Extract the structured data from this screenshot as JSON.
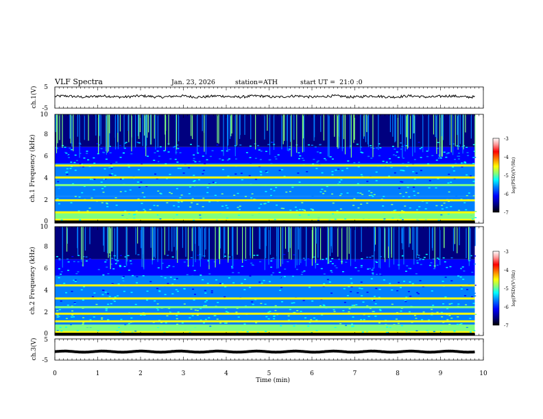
{
  "header": {
    "title": "VLF Spectra",
    "date": "Jan. 23, 2026",
    "station": "station=ATH",
    "start": "start UT =  21:0 :0"
  },
  "colors": {
    "jet": [
      "#000000",
      "#00007f",
      "#0000ff",
      "#007fff",
      "#00ffff",
      "#7fff7f",
      "#ffff00",
      "#ff7f00",
      "#ff0000",
      "#ff9f9f",
      "#ffffff"
    ],
    "trace": "#000000",
    "axis": "#000000"
  },
  "chart_data": [
    {
      "id": "ch1-waveform",
      "type": "line",
      "ylabel": "ch.1(V)",
      "ylim": [
        -5,
        5
      ],
      "yticks": [
        "5",
        "-5"
      ],
      "series": [
        {
          "name": "ch.1",
          "mean": 0.5,
          "amplitude": 0.6
        }
      ]
    },
    {
      "id": "ch1-spectrogram",
      "type": "heatmap",
      "ylabel": "ch.1 Frequency (kHz)",
      "ylim": [
        0,
        10
      ],
      "yticks": [
        "0",
        "2",
        "4",
        "6",
        "8",
        "10"
      ],
      "bands_khz": [
        0.6,
        1.0,
        2.1,
        3.5,
        4.2,
        5.3
      ],
      "colorbar": {
        "label": "log(PSD)(V²/Hz)",
        "range": [
          -7,
          -3
        ],
        "ticks": [
          "-3",
          "-4",
          "-5",
          "-6",
          "-7"
        ]
      }
    },
    {
      "id": "ch2-spectrogram",
      "type": "heatmap",
      "ylabel": "ch.2 Frequency (kHz)",
      "ylim": [
        0,
        10
      ],
      "yticks": [
        "0",
        "2",
        "4",
        "6",
        "8",
        "10"
      ],
      "bands_khz": [
        0.6,
        1.3,
        2.0,
        2.6,
        3.4,
        4.6
      ],
      "colorbar": {
        "label": "log(PSD)(V²/Hz)",
        "range": [
          -7,
          -3
        ],
        "ticks": [
          "-3",
          "-4",
          "-5",
          "-6",
          "-7"
        ]
      }
    },
    {
      "id": "ch3-waveform",
      "type": "line",
      "ylabel": "ch.3(V)",
      "ylim": [
        -5,
        5
      ],
      "yticks": [
        "5",
        "-5"
      ],
      "series": [
        {
          "name": "ch.3",
          "mean": -1.0,
          "amplitude": 0.15
        }
      ]
    }
  ],
  "x_axis": {
    "label": "Time (min)",
    "xlim": [
      0,
      10
    ],
    "data_end_min": 9.8,
    "ticks": [
      "0",
      "1",
      "2",
      "3",
      "4",
      "5",
      "6",
      "7",
      "8",
      "9",
      "10"
    ]
  }
}
